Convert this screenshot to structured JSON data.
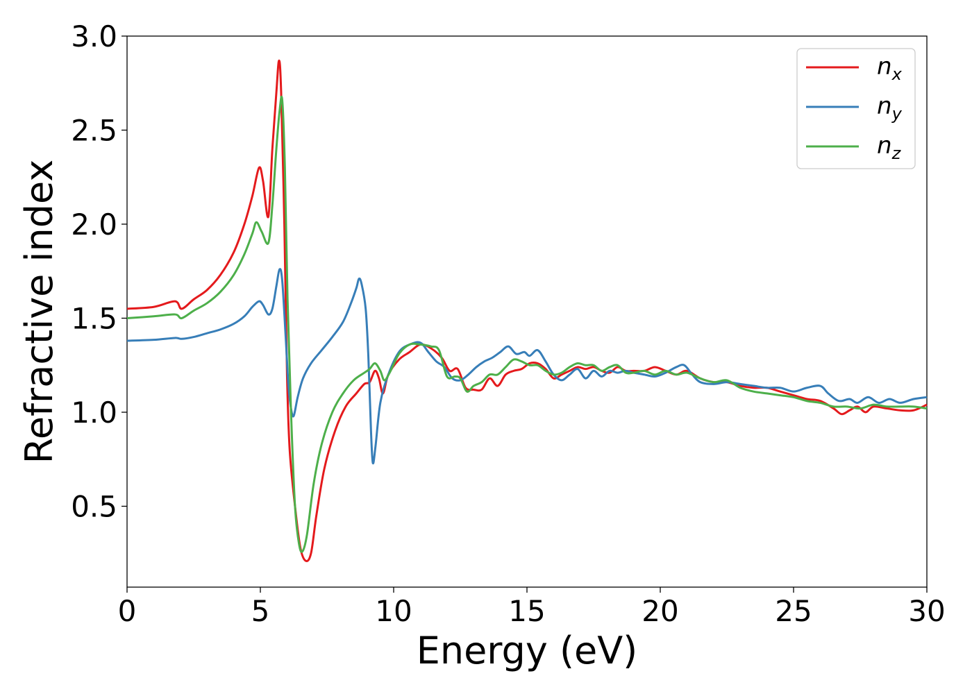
{
  "chart_data": {
    "type": "line",
    "title": "",
    "xlabel": "Energy (eV)",
    "ylabel": "Refractive index",
    "xlim": [
      0,
      30
    ],
    "ylim": [
      0.07,
      3.0
    ],
    "xticks": [
      0,
      5,
      10,
      15,
      20,
      25,
      30
    ],
    "xtick_labels": [
      "0",
      "5",
      "10",
      "15",
      "20",
      "25",
      "30"
    ],
    "yticks": [
      0.5,
      1.0,
      1.5,
      2.0,
      2.5,
      3.0
    ],
    "ytick_labels": [
      "0.5",
      "1.0",
      "1.5",
      "2.0",
      "2.5",
      "3.0"
    ],
    "grid": false,
    "legend_position": "top-right",
    "series": [
      {
        "name": "n_x",
        "label_main": "n",
        "label_sub": "x",
        "color": "#e41a1c",
        "points": [
          [
            0,
            1.55
          ],
          [
            1,
            1.56
          ],
          [
            1.8,
            1.59
          ],
          [
            2.05,
            1.55
          ],
          [
            2.5,
            1.6
          ],
          [
            3,
            1.65
          ],
          [
            3.5,
            1.73
          ],
          [
            4,
            1.85
          ],
          [
            4.4,
            2.0
          ],
          [
            4.7,
            2.15
          ],
          [
            4.95,
            2.3
          ],
          [
            5.1,
            2.23
          ],
          [
            5.3,
            2.04
          ],
          [
            5.45,
            2.4
          ],
          [
            5.6,
            2.7
          ],
          [
            5.7,
            2.87
          ],
          [
            5.78,
            2.7
          ],
          [
            5.9,
            2.0
          ],
          [
            6.0,
            1.2
          ],
          [
            6.1,
            0.8
          ],
          [
            6.3,
            0.5
          ],
          [
            6.5,
            0.28
          ],
          [
            6.7,
            0.21
          ],
          [
            6.9,
            0.25
          ],
          [
            7.1,
            0.45
          ],
          [
            7.4,
            0.7
          ],
          [
            7.8,
            0.9
          ],
          [
            8.2,
            1.03
          ],
          [
            8.6,
            1.1
          ],
          [
            8.9,
            1.15
          ],
          [
            9.1,
            1.16
          ],
          [
            9.3,
            1.22
          ],
          [
            9.45,
            1.18
          ],
          [
            9.6,
            1.1
          ],
          [
            9.8,
            1.2
          ],
          [
            10.2,
            1.28
          ],
          [
            10.6,
            1.32
          ],
          [
            11,
            1.36
          ],
          [
            11.4,
            1.34
          ],
          [
            11.8,
            1.29
          ],
          [
            12.1,
            1.22
          ],
          [
            12.4,
            1.23
          ],
          [
            12.7,
            1.13
          ],
          [
            13,
            1.12
          ],
          [
            13.3,
            1.12
          ],
          [
            13.6,
            1.18
          ],
          [
            13.9,
            1.14
          ],
          [
            14.2,
            1.2
          ],
          [
            14.5,
            1.22
          ],
          [
            14.8,
            1.23
          ],
          [
            15.1,
            1.26
          ],
          [
            15.4,
            1.26
          ],
          [
            15.7,
            1.23
          ],
          [
            16,
            1.18
          ],
          [
            16.3,
            1.2
          ],
          [
            16.6,
            1.22
          ],
          [
            16.9,
            1.24
          ],
          [
            17.2,
            1.23
          ],
          [
            17.5,
            1.24
          ],
          [
            17.8,
            1.22
          ],
          [
            18.1,
            1.21
          ],
          [
            18.4,
            1.24
          ],
          [
            18.7,
            1.22
          ],
          [
            19,
            1.22
          ],
          [
            19.4,
            1.22
          ],
          [
            19.8,
            1.24
          ],
          [
            20.2,
            1.22
          ],
          [
            20.6,
            1.2
          ],
          [
            21,
            1.22
          ],
          [
            21.5,
            1.18
          ],
          [
            22,
            1.16
          ],
          [
            22.5,
            1.16
          ],
          [
            23,
            1.14
          ],
          [
            23.5,
            1.13
          ],
          [
            24,
            1.13
          ],
          [
            24.5,
            1.11
          ],
          [
            25,
            1.09
          ],
          [
            25.5,
            1.07
          ],
          [
            26,
            1.06
          ],
          [
            26.5,
            1.02
          ],
          [
            26.8,
            0.99
          ],
          [
            27.1,
            1.01
          ],
          [
            27.4,
            1.03
          ],
          [
            27.7,
            1.0
          ],
          [
            28,
            1.03
          ],
          [
            28.5,
            1.02
          ],
          [
            29,
            1.01
          ],
          [
            29.5,
            1.01
          ],
          [
            30,
            1.04
          ]
        ]
      },
      {
        "name": "n_y",
        "label_main": "n",
        "label_sub": "y",
        "color": "#377eb8",
        "points": [
          [
            0,
            1.38
          ],
          [
            1,
            1.385
          ],
          [
            1.8,
            1.395
          ],
          [
            2.05,
            1.39
          ],
          [
            2.5,
            1.4
          ],
          [
            3,
            1.42
          ],
          [
            3.5,
            1.44
          ],
          [
            4,
            1.47
          ],
          [
            4.4,
            1.51
          ],
          [
            4.7,
            1.56
          ],
          [
            4.95,
            1.59
          ],
          [
            5.1,
            1.57
          ],
          [
            5.3,
            1.52
          ],
          [
            5.45,
            1.55
          ],
          [
            5.6,
            1.67
          ],
          [
            5.72,
            1.76
          ],
          [
            5.82,
            1.7
          ],
          [
            5.95,
            1.4
          ],
          [
            6.05,
            1.15
          ],
          [
            6.15,
            1.02
          ],
          [
            6.25,
            0.98
          ],
          [
            6.4,
            1.08
          ],
          [
            6.6,
            1.18
          ],
          [
            6.9,
            1.26
          ],
          [
            7.3,
            1.33
          ],
          [
            7.7,
            1.4
          ],
          [
            8.1,
            1.48
          ],
          [
            8.4,
            1.58
          ],
          [
            8.6,
            1.66
          ],
          [
            8.7,
            1.71
          ],
          [
            8.8,
            1.68
          ],
          [
            8.95,
            1.55
          ],
          [
            9.05,
            1.3
          ],
          [
            9.15,
            0.9
          ],
          [
            9.22,
            0.73
          ],
          [
            9.32,
            0.82
          ],
          [
            9.5,
            1.05
          ],
          [
            9.8,
            1.2
          ],
          [
            10.2,
            1.32
          ],
          [
            10.6,
            1.36
          ],
          [
            11,
            1.37
          ],
          [
            11.3,
            1.32
          ],
          [
            11.6,
            1.27
          ],
          [
            11.9,
            1.24
          ],
          [
            12.2,
            1.18
          ],
          [
            12.5,
            1.17
          ],
          [
            12.8,
            1.2
          ],
          [
            13.1,
            1.24
          ],
          [
            13.4,
            1.27
          ],
          [
            13.7,
            1.29
          ],
          [
            14,
            1.32
          ],
          [
            14.3,
            1.35
          ],
          [
            14.6,
            1.31
          ],
          [
            14.9,
            1.32
          ],
          [
            15.1,
            1.3
          ],
          [
            15.4,
            1.33
          ],
          [
            15.7,
            1.27
          ],
          [
            16,
            1.2
          ],
          [
            16.3,
            1.17
          ],
          [
            16.6,
            1.2
          ],
          [
            16.9,
            1.23
          ],
          [
            17.2,
            1.18
          ],
          [
            17.5,
            1.22
          ],
          [
            17.8,
            1.19
          ],
          [
            18.1,
            1.22
          ],
          [
            18.4,
            1.21
          ],
          [
            18.7,
            1.22
          ],
          [
            19,
            1.21
          ],
          [
            19.4,
            1.2
          ],
          [
            19.8,
            1.19
          ],
          [
            20.2,
            1.21
          ],
          [
            20.6,
            1.24
          ],
          [
            20.9,
            1.25
          ],
          [
            21.2,
            1.2
          ],
          [
            21.5,
            1.16
          ],
          [
            22,
            1.15
          ],
          [
            22.5,
            1.16
          ],
          [
            23,
            1.15
          ],
          [
            23.5,
            1.14
          ],
          [
            24,
            1.13
          ],
          [
            24.5,
            1.13
          ],
          [
            25,
            1.11
          ],
          [
            25.5,
            1.13
          ],
          [
            26,
            1.14
          ],
          [
            26.3,
            1.1
          ],
          [
            26.7,
            1.06
          ],
          [
            27.1,
            1.07
          ],
          [
            27.4,
            1.05
          ],
          [
            27.8,
            1.08
          ],
          [
            28.2,
            1.05
          ],
          [
            28.6,
            1.07
          ],
          [
            29,
            1.05
          ],
          [
            29.5,
            1.07
          ],
          [
            30,
            1.08
          ]
        ]
      },
      {
        "name": "n_z",
        "label_main": "n",
        "label_sub": "z",
        "color": "#4daf4a",
        "points": [
          [
            0,
            1.5
          ],
          [
            1,
            1.51
          ],
          [
            1.8,
            1.52
          ],
          [
            2.05,
            1.5
          ],
          [
            2.5,
            1.54
          ],
          [
            3,
            1.58
          ],
          [
            3.5,
            1.64
          ],
          [
            4,
            1.73
          ],
          [
            4.4,
            1.84
          ],
          [
            4.7,
            1.95
          ],
          [
            4.85,
            2.01
          ],
          [
            5.05,
            1.96
          ],
          [
            5.3,
            1.9
          ],
          [
            5.45,
            2.1
          ],
          [
            5.6,
            2.4
          ],
          [
            5.72,
            2.6
          ],
          [
            5.82,
            2.66
          ],
          [
            5.92,
            2.3
          ],
          [
            6.02,
            1.6
          ],
          [
            6.15,
            1.0
          ],
          [
            6.3,
            0.5
          ],
          [
            6.45,
            0.3
          ],
          [
            6.58,
            0.26
          ],
          [
            6.75,
            0.35
          ],
          [
            7.0,
            0.62
          ],
          [
            7.3,
            0.83
          ],
          [
            7.7,
            1.0
          ],
          [
            8.1,
            1.1
          ],
          [
            8.5,
            1.17
          ],
          [
            8.9,
            1.21
          ],
          [
            9.1,
            1.23
          ],
          [
            9.3,
            1.26
          ],
          [
            9.5,
            1.22
          ],
          [
            9.65,
            1.17
          ],
          [
            9.85,
            1.21
          ],
          [
            10.2,
            1.31
          ],
          [
            10.6,
            1.36
          ],
          [
            11,
            1.36
          ],
          [
            11.4,
            1.35
          ],
          [
            11.7,
            1.33
          ],
          [
            12,
            1.19
          ],
          [
            12.3,
            1.19
          ],
          [
            12.5,
            1.18
          ],
          [
            12.75,
            1.11
          ],
          [
            13,
            1.14
          ],
          [
            13.3,
            1.16
          ],
          [
            13.6,
            1.2
          ],
          [
            13.9,
            1.2
          ],
          [
            14.2,
            1.24
          ],
          [
            14.5,
            1.28
          ],
          [
            14.8,
            1.27
          ],
          [
            15.1,
            1.25
          ],
          [
            15.4,
            1.25
          ],
          [
            15.7,
            1.22
          ],
          [
            16,
            1.2
          ],
          [
            16.3,
            1.21
          ],
          [
            16.6,
            1.24
          ],
          [
            16.9,
            1.26
          ],
          [
            17.2,
            1.25
          ],
          [
            17.5,
            1.25
          ],
          [
            17.8,
            1.22
          ],
          [
            18.1,
            1.24
          ],
          [
            18.4,
            1.25
          ],
          [
            18.7,
            1.21
          ],
          [
            19,
            1.21
          ],
          [
            19.4,
            1.22
          ],
          [
            19.8,
            1.2
          ],
          [
            20.2,
            1.22
          ],
          [
            20.6,
            1.2
          ],
          [
            21,
            1.21
          ],
          [
            21.5,
            1.18
          ],
          [
            22,
            1.16
          ],
          [
            22.5,
            1.17
          ],
          [
            23,
            1.13
          ],
          [
            23.5,
            1.11
          ],
          [
            24,
            1.1
          ],
          [
            24.5,
            1.09
          ],
          [
            25,
            1.08
          ],
          [
            25.5,
            1.06
          ],
          [
            26,
            1.05
          ],
          [
            26.5,
            1.03
          ],
          [
            27,
            1.03
          ],
          [
            27.5,
            1.02
          ],
          [
            28,
            1.04
          ],
          [
            28.5,
            1.03
          ],
          [
            29,
            1.03
          ],
          [
            29.5,
            1.03
          ],
          [
            30,
            1.02
          ]
        ]
      }
    ]
  }
}
